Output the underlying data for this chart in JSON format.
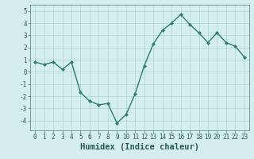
{
  "x": [
    0,
    1,
    2,
    3,
    4,
    5,
    6,
    7,
    8,
    9,
    10,
    11,
    12,
    13,
    14,
    15,
    16,
    17,
    18,
    19,
    20,
    21,
    22,
    23
  ],
  "y": [
    0.8,
    0.6,
    0.8,
    0.2,
    0.8,
    -1.7,
    -2.4,
    -2.7,
    -2.6,
    -4.2,
    -3.5,
    -1.8,
    0.5,
    2.3,
    3.4,
    4.0,
    4.7,
    3.9,
    3.2,
    2.4,
    3.2,
    2.4,
    2.1,
    1.2
  ],
  "line_color": "#2e7d6e",
  "marker": "D",
  "marker_size": 2.0,
  "bg_color": "#d4eeee",
  "grid_color": "#afd4d4",
  "xlabel": "Humidex (Indice chaleur)",
  "xlim": [
    -0.5,
    23.5
  ],
  "ylim": [
    -4.8,
    5.5
  ],
  "yticks": [
    -4,
    -3,
    -2,
    -1,
    0,
    1,
    2,
    3,
    4,
    5
  ],
  "xticks": [
    0,
    1,
    2,
    3,
    4,
    5,
    6,
    7,
    8,
    9,
    10,
    11,
    12,
    13,
    14,
    15,
    16,
    17,
    18,
    19,
    20,
    21,
    22,
    23
  ],
  "tick_fontsize": 5.5,
  "xlabel_fontsize": 7.5,
  "linewidth": 1.0
}
